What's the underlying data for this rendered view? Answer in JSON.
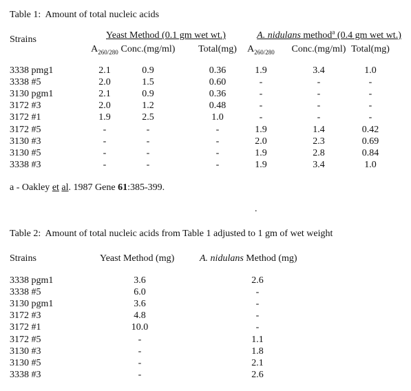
{
  "table1": {
    "title": "Table 1:  Amount of total nucleic acids",
    "strains_header": "Strains",
    "group1": "Yeast Method (0.1 gm wet wt.)",
    "group2": {
      "italic": "A. nidulans",
      "text": " method",
      "sup": "a",
      "rest": " (0.4 gm wet wt.)"
    },
    "columns": [
      {
        "main": "A",
        "sub": "260/280"
      },
      "Conc.(mg/ml)",
      "Total(mg)",
      {
        "main": "A",
        "sub": "260/280"
      },
      "Conc.(mg/ml)",
      "Total(mg)"
    ],
    "rows": [
      [
        "3338 pmg1",
        "2.1",
        "0.9",
        "0.36",
        "1.9",
        "3.4",
        "1.0"
      ],
      [
        "3338 #5",
        "2.0",
        "1.5",
        "0.60",
        "-",
        "-",
        "-"
      ],
      [
        "3130 pgm1",
        "2.1",
        "0.9",
        "0.36",
        "-",
        "-",
        "-"
      ],
      [
        "3172 #3",
        "2.0",
        "1.2",
        "0.48",
        "-",
        "-",
        "-"
      ],
      [
        "3172 #1",
        "1.9",
        "2.5",
        "1.0",
        "-",
        "-",
        "-"
      ],
      [
        "3172 #5",
        "-",
        "-",
        "-",
        "1.9",
        "1.4",
        "0.42"
      ],
      [
        "3130 #3",
        "-",
        "-",
        "-",
        "2.0",
        "2.3",
        "0.69"
      ],
      [
        "3130 #5",
        "-",
        "-",
        "-",
        "1.9",
        "2.8",
        "0.84"
      ],
      [
        "3338 #3",
        "-",
        "-",
        "-",
        "1.9",
        "3.4",
        "1.0"
      ]
    ],
    "footnote": {
      "prefix": "a - Oakley ",
      "et": "et",
      "mid": " ",
      "al": "al",
      "after": ". 1987 Gene ",
      "volume": "61",
      "pages": ":385-399."
    }
  },
  "mark": ".",
  "table2": {
    "title": "Table 2:  Amount of total nucleic acids from Table 1 adjusted to 1 gm of wet weight",
    "header": [
      "Strains",
      "Yeast Method (mg)",
      {
        "italic": "A. nidulans",
        "text": " Method (mg)"
      }
    ],
    "rows": [
      [
        "3338 pgm1",
        "3.6",
        "2.6"
      ],
      [
        "3338 #5",
        "6.0",
        "-"
      ],
      [
        "3130 pgm1",
        "3.6",
        "-"
      ],
      [
        "3172 #3",
        "4.8",
        "-"
      ],
      [
        "3172 #1",
        "10.0",
        "-"
      ],
      [
        "3172 #5",
        "-",
        "1.1"
      ],
      [
        "3130 #3",
        "-",
        "1.8"
      ],
      [
        "3130 #5",
        "-",
        "2.1"
      ],
      [
        "3338 #3",
        "-",
        "2.6"
      ]
    ]
  }
}
